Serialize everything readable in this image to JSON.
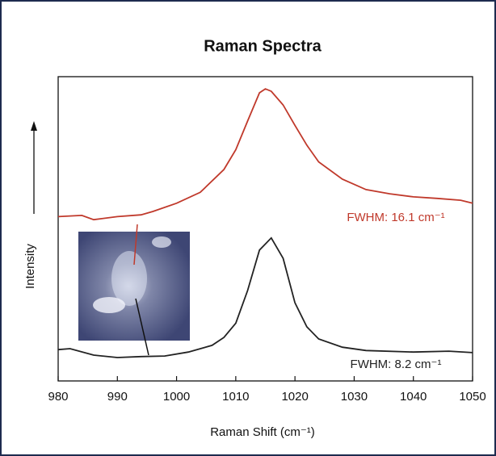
{
  "chart_data": {
    "type": "line",
    "title": "Raman Spectra",
    "x_label": "Raman Shift (cm⁻¹)",
    "y_label": "Intensity",
    "xlim": [
      980,
      1050
    ],
    "xticks": [
      980,
      990,
      1000,
      1010,
      1020,
      1030,
      1040,
      1050
    ],
    "ylim": [
      0,
      100
    ],
    "grid": false,
    "series": [
      {
        "color": "#c0392b",
        "x": [
          980,
          984,
          986,
          990,
          994,
          996,
          1000,
          1004,
          1008,
          1010,
          1012,
          1014,
          1015,
          1016,
          1018,
          1020,
          1022,
          1024,
          1028,
          1032,
          1036,
          1040,
          1044,
          1048,
          1050
        ],
        "values": [
          54,
          54.4,
          53,
          54,
          54.6,
          55.7,
          58.4,
          62,
          69.5,
          76,
          85.4,
          94.7,
          96,
          95.2,
          90.7,
          84,
          77.5,
          72,
          66.3,
          62.9,
          61.5,
          60.5,
          60,
          59.4,
          58.4
        ]
      },
      {
        "color": "#222222",
        "x": [
          980,
          982,
          986,
          990,
          994,
          998,
          1002,
          1006,
          1008,
          1010,
          1012,
          1014,
          1016,
          1018,
          1020,
          1022,
          1024,
          1028,
          1032,
          1040,
          1046,
          1050
        ],
        "values": [
          10.3,
          10.6,
          8.5,
          7.7,
          8,
          8.2,
          9.5,
          11.7,
          14.3,
          19,
          29.7,
          43,
          47,
          40.3,
          25.7,
          17.8,
          13.8,
          11.1,
          10,
          9.5,
          9.8,
          9.3
        ]
      }
    ],
    "annotations": [
      {
        "text": "FWHM: 16.1 cm⁻¹",
        "color": "#c0392b"
      },
      {
        "text": "FWHM: 8.2 cm⁻¹",
        "color": "#222222"
      }
    ]
  }
}
